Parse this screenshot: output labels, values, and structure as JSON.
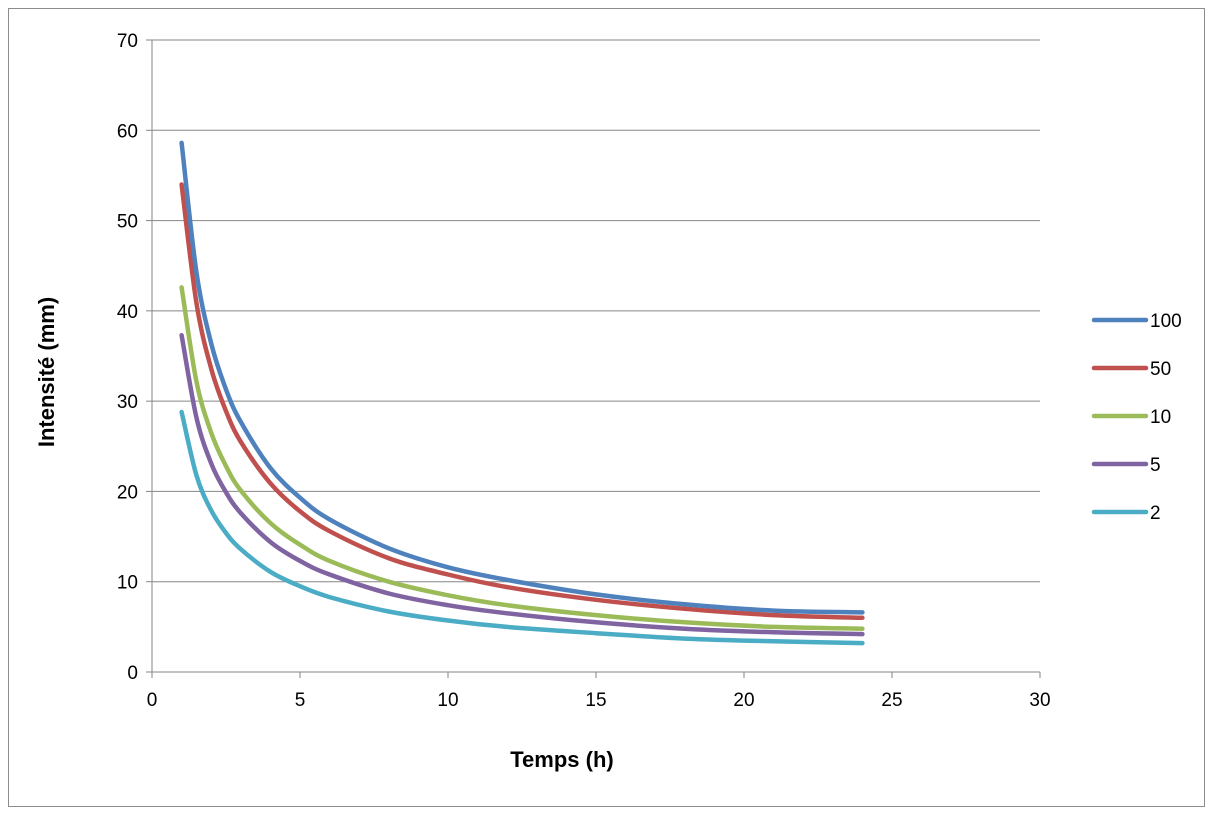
{
  "chart_data": {
    "type": "line",
    "title": "",
    "xlabel": "Temps (h)",
    "ylabel": "Intensité (mm)",
    "xlim": [
      0,
      30
    ],
    "ylim": [
      0,
      70
    ],
    "xticks": [
      0,
      5,
      10,
      15,
      20,
      25,
      30
    ],
    "yticks": [
      0,
      10,
      20,
      30,
      40,
      50,
      60,
      70
    ],
    "xtick_labels": [
      "0",
      "5",
      "10",
      "15",
      "20",
      "25",
      "30"
    ],
    "ytick_labels": [
      "0",
      "10",
      "20",
      "30",
      "40",
      "50",
      "60",
      "70"
    ],
    "grid": "horizontal",
    "legend_position": "right",
    "x": [
      1,
      1.5,
      2,
      2.5,
      3,
      4,
      5,
      6,
      8,
      10,
      12,
      15,
      18,
      21,
      24
    ],
    "series": [
      {
        "name": "100",
        "color": "#4F81BD",
        "values": [
          58.6,
          44.3,
          36.4,
          31.3,
          27.7,
          22.6,
          19.3,
          16.9,
          13.7,
          11.6,
          10.2,
          8.6,
          7.5,
          6.8,
          6.6
        ]
      },
      {
        "name": "50",
        "color": "#C0504D",
        "values": [
          54.0,
          40.9,
          33.6,
          28.9,
          25.5,
          20.9,
          17.8,
          15.6,
          12.6,
          10.8,
          9.4,
          8.0,
          7.0,
          6.3,
          6.0
        ]
      },
      {
        "name": "10",
        "color": "#9BBB59",
        "values": [
          42.6,
          32.2,
          26.5,
          22.8,
          20.1,
          16.5,
          14.1,
          12.3,
          10.0,
          8.5,
          7.4,
          6.3,
          5.5,
          5.0,
          4.8
        ]
      },
      {
        "name": "5",
        "color": "#8064A2",
        "values": [
          37.3,
          28.2,
          23.1,
          19.9,
          17.6,
          14.4,
          12.3,
          10.8,
          8.7,
          7.4,
          6.5,
          5.5,
          4.8,
          4.4,
          4.2
        ]
      },
      {
        "name": "2",
        "color": "#4BACC6",
        "values": [
          28.8,
          21.8,
          17.9,
          15.4,
          13.6,
          11.1,
          9.5,
          8.3,
          6.7,
          5.7,
          5.0,
          4.3,
          3.7,
          3.4,
          3.2
        ]
      }
    ]
  }
}
